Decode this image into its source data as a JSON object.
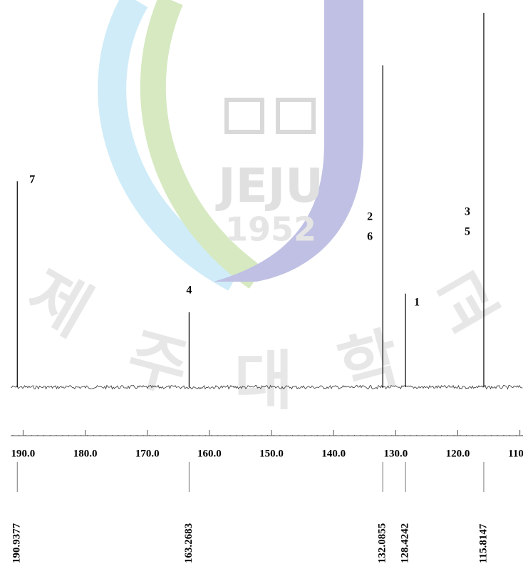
{
  "watermark": {
    "logo": "JEJU",
    "year": "1952",
    "name": [
      "제",
      "주",
      "대",
      "학",
      "교"
    ]
  },
  "chart_data": {
    "type": "spectrum",
    "color": "#000000",
    "x": [
      190.9377,
      163.2683,
      132.0855,
      128.4242,
      115.8147
    ],
    "values": [
      55,
      20,
      86,
      25,
      100
    ],
    "peak_labels": [
      [
        "7"
      ],
      [
        "4"
      ],
      [
        "2",
        "6"
      ],
      [
        "1"
      ],
      [
        "3",
        "5"
      ]
    ],
    "xlim": [
      192,
      109.5
    ],
    "ylim": [
      0,
      100
    ],
    "xticks": [
      {
        "value": 190,
        "label": "190.0"
      },
      {
        "value": 180,
        "label": "180.0"
      },
      {
        "value": 170,
        "label": "170.0"
      },
      {
        "value": 160,
        "label": "160.0"
      },
      {
        "value": 150,
        "label": "150.0"
      },
      {
        "value": 140,
        "label": "140.0"
      },
      {
        "value": 130,
        "label": "130.0"
      },
      {
        "value": 120,
        "label": "120.0"
      },
      {
        "value": 110,
        "label": "110.0"
      }
    ]
  }
}
